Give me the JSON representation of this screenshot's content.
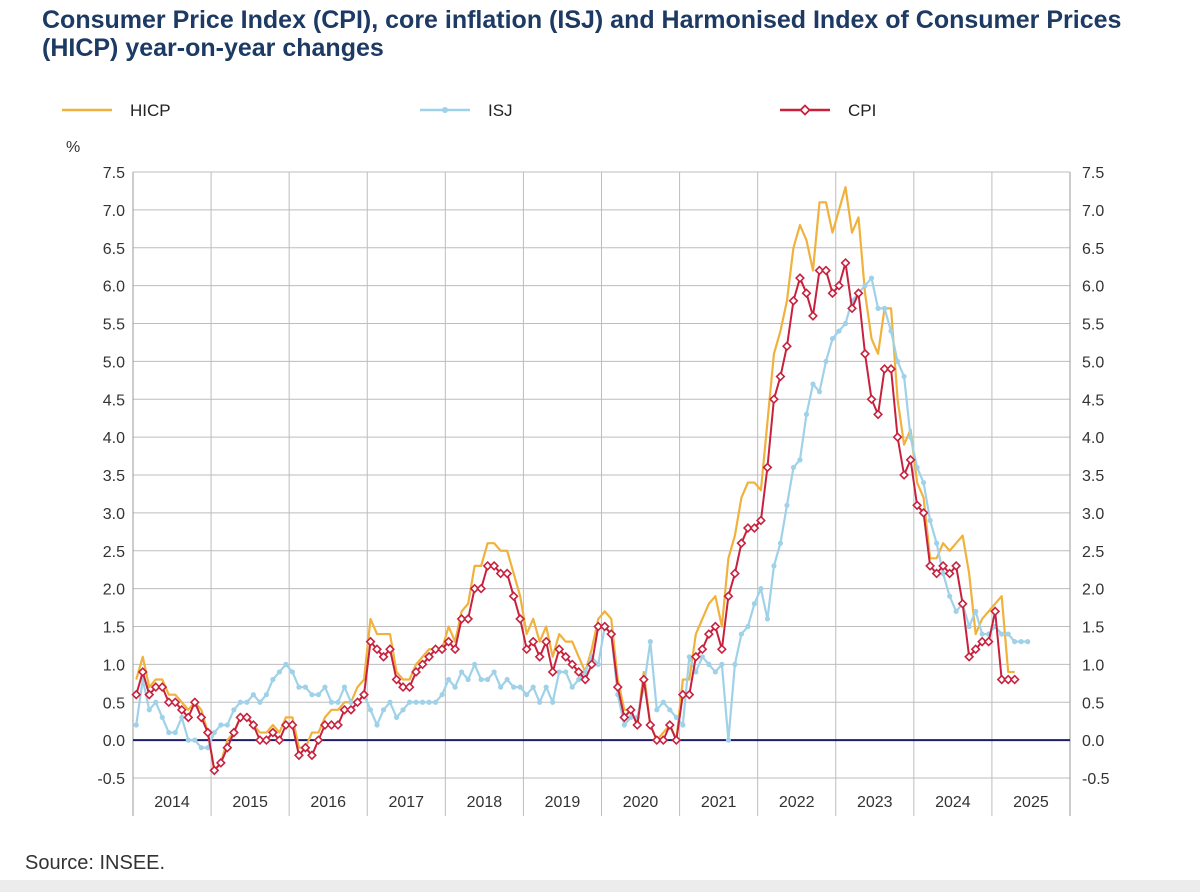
{
  "title": "Consumer Price Index (CPI), core inflation (ISJ) and Harmonised Index of Consumer Prices (HICP) year-on-year changes",
  "source": "Source: INSEE.",
  "colors": {
    "HICP": "#f0b23d",
    "ISJ": "#9fd2e8",
    "CPI": "#c7213e",
    "zero_line": "#1d1d6b",
    "grid": "#bdbdbd"
  },
  "chart_data": {
    "type": "line",
    "ylabel": "%",
    "ylim": [
      -0.5,
      7.5
    ],
    "yticks": [
      "7.5",
      "7.0",
      "6.5",
      "6.0",
      "5.5",
      "5.0",
      "4.5",
      "4.0",
      "3.5",
      "3.0",
      "2.5",
      "2.0",
      "1.5",
      "1.0",
      "0.5",
      "0.0",
      "-0.5"
    ],
    "x_start": "2014-01",
    "x_end": "2025-12",
    "years": [
      "2014",
      "2015",
      "2016",
      "2017",
      "2018",
      "2019",
      "2020",
      "2021",
      "2022",
      "2023",
      "2024",
      "2025"
    ],
    "grid": true,
    "legend_position": "top",
    "series": [
      {
        "name": "HICP",
        "marker": "none",
        "start": "2014-01",
        "values": [
          0.8,
          1.1,
          0.7,
          0.8,
          0.8,
          0.6,
          0.6,
          0.5,
          0.4,
          0.5,
          0.4,
          0.1,
          -0.4,
          -0.3,
          0.0,
          0.1,
          0.3,
          0.3,
          0.2,
          0.1,
          0.1,
          0.2,
          0.1,
          0.3,
          0.3,
          -0.1,
          -0.1,
          0.1,
          0.1,
          0.3,
          0.4,
          0.4,
          0.5,
          0.5,
          0.7,
          0.8,
          1.6,
          1.4,
          1.4,
          1.4,
          0.9,
          0.8,
          0.8,
          1.0,
          1.1,
          1.2,
          1.2,
          1.2,
          1.5,
          1.3,
          1.7,
          1.8,
          2.3,
          2.3,
          2.6,
          2.6,
          2.5,
          2.5,
          2.2,
          1.9,
          1.4,
          1.6,
          1.3,
          1.5,
          1.1,
          1.4,
          1.3,
          1.3,
          1.1,
          0.9,
          1.2,
          1.6,
          1.7,
          1.6,
          0.8,
          0.4,
          0.4,
          0.2,
          0.9,
          0.2,
          0.0,
          0.1,
          0.2,
          0.0,
          0.8,
          0.8,
          1.4,
          1.6,
          1.8,
          1.9,
          1.5,
          2.4,
          2.7,
          3.2,
          3.4,
          3.4,
          3.3,
          4.2,
          5.1,
          5.4,
          5.8,
          6.5,
          6.8,
          6.6,
          6.2,
          7.1,
          7.1,
          6.7,
          7.0,
          7.3,
          6.7,
          6.9,
          5.9,
          5.3,
          5.1,
          5.7,
          5.7,
          4.5,
          3.9,
          4.1,
          3.4,
          3.2,
          2.4,
          2.4,
          2.6,
          2.5,
          2.6,
          2.7,
          2.2,
          1.4,
          1.6,
          1.7,
          1.8,
          1.9,
          0.9,
          0.9
        ],
        "color": "#f0b23d"
      },
      {
        "name": "ISJ",
        "marker": "dot",
        "start": "2014-01",
        "values": [
          0.2,
          0.8,
          0.4,
          0.5,
          0.3,
          0.1,
          0.1,
          0.3,
          0.0,
          0.0,
          -0.1,
          -0.1,
          0.1,
          0.2,
          0.2,
          0.4,
          0.5,
          0.5,
          0.6,
          0.5,
          0.6,
          0.8,
          0.9,
          1.0,
          0.9,
          0.7,
          0.7,
          0.6,
          0.6,
          0.7,
          0.5,
          0.5,
          0.7,
          0.5,
          0.5,
          0.6,
          0.4,
          0.2,
          0.4,
          0.5,
          0.3,
          0.4,
          0.5,
          0.5,
          0.5,
          0.5,
          0.5,
          0.6,
          0.8,
          0.7,
          0.9,
          0.8,
          1.0,
          0.8,
          0.8,
          0.9,
          0.7,
          0.8,
          0.7,
          0.7,
          0.6,
          0.7,
          0.5,
          0.7,
          0.5,
          0.9,
          0.9,
          0.7,
          0.8,
          0.9,
          1.1,
          1.0,
          1.5,
          1.4,
          0.6,
          0.2,
          0.3,
          0.3,
          0.7,
          1.3,
          0.4,
          0.5,
          0.4,
          0.3,
          0.2,
          1.1,
          0.9,
          1.1,
          1.0,
          0.9,
          1.0,
          0.0,
          1.0,
          1.4,
          1.5,
          1.8,
          2.0,
          1.6,
          2.3,
          2.6,
          3.1,
          3.6,
          3.7,
          4.3,
          4.7,
          4.6,
          5.0,
          5.3,
          5.4,
          5.5,
          5.8,
          5.9,
          6.0,
          6.1,
          5.7,
          5.7,
          5.4,
          5.0,
          4.8,
          4.0,
          3.6,
          3.4,
          2.9,
          2.6,
          2.2,
          1.9,
          1.7,
          1.8,
          1.5,
          1.7,
          1.4,
          1.4,
          1.5,
          1.4,
          1.4,
          1.3,
          1.3,
          1.3
        ],
        "color": "#9fd2e8"
      },
      {
        "name": "CPI",
        "marker": "diamond",
        "start": "2014-01",
        "values": [
          0.6,
          0.9,
          0.6,
          0.7,
          0.7,
          0.5,
          0.5,
          0.4,
          0.3,
          0.5,
          0.3,
          0.1,
          -0.4,
          -0.3,
          -0.1,
          0.1,
          0.3,
          0.3,
          0.2,
          0.0,
          0.0,
          0.1,
          0.0,
          0.2,
          0.2,
          -0.2,
          -0.1,
          -0.2,
          0.0,
          0.2,
          0.2,
          0.2,
          0.4,
          0.4,
          0.5,
          0.6,
          1.3,
          1.2,
          1.1,
          1.2,
          0.8,
          0.7,
          0.7,
          0.9,
          1.0,
          1.1,
          1.2,
          1.2,
          1.3,
          1.2,
          1.6,
          1.6,
          2.0,
          2.0,
          2.3,
          2.3,
          2.2,
          2.2,
          1.9,
          1.6,
          1.2,
          1.3,
          1.1,
          1.3,
          0.9,
          1.2,
          1.1,
          1.0,
          0.9,
          0.8,
          1.0,
          1.5,
          1.5,
          1.4,
          0.7,
          0.3,
          0.4,
          0.2,
          0.8,
          0.2,
          0.0,
          0.0,
          0.2,
          0.0,
          0.6,
          0.6,
          1.1,
          1.2,
          1.4,
          1.5,
          1.2,
          1.9,
          2.2,
          2.6,
          2.8,
          2.8,
          2.9,
          3.6,
          4.5,
          4.8,
          5.2,
          5.8,
          6.1,
          5.9,
          5.6,
          6.2,
          6.2,
          5.9,
          6.0,
          6.3,
          5.7,
          5.9,
          5.1,
          4.5,
          4.3,
          4.9,
          4.9,
          4.0,
          3.5,
          3.7,
          3.1,
          3.0,
          2.3,
          2.2,
          2.3,
          2.2,
          2.3,
          1.8,
          1.1,
          1.2,
          1.3,
          1.3,
          1.7,
          0.8,
          0.8,
          0.8
        ],
        "color": "#c7213e"
      }
    ]
  }
}
